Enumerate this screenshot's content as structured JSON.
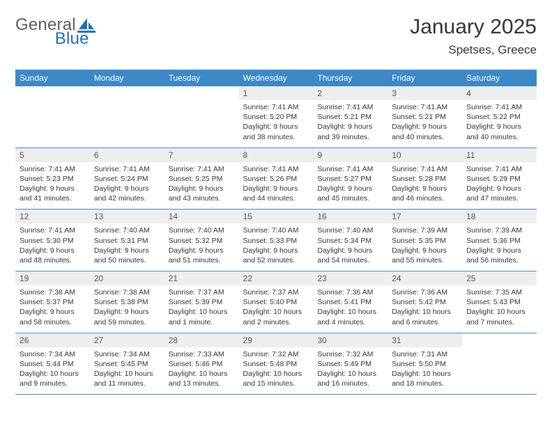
{
  "brand": {
    "name1": "General",
    "name2": "Blue"
  },
  "title": "January 2025",
  "location": "Spetses, Greece",
  "colors": {
    "accent": "#3b89c7",
    "header_text": "#ffffff",
    "daynum_bg": "#eeeeee",
    "text": "#333333",
    "logo_gray": "#5b5b5b"
  },
  "days_of_week": [
    "Sunday",
    "Monday",
    "Tuesday",
    "Wednesday",
    "Thursday",
    "Friday",
    "Saturday"
  ],
  "weeks": [
    [
      {
        "n": "",
        "sr": "",
        "ss": "",
        "dl": ""
      },
      {
        "n": "",
        "sr": "",
        "ss": "",
        "dl": ""
      },
      {
        "n": "",
        "sr": "",
        "ss": "",
        "dl": ""
      },
      {
        "n": "1",
        "sr": "7:41 AM",
        "ss": "5:20 PM",
        "dl": "9 hours and 38 minutes."
      },
      {
        "n": "2",
        "sr": "7:41 AM",
        "ss": "5:21 PM",
        "dl": "9 hours and 39 minutes."
      },
      {
        "n": "3",
        "sr": "7:41 AM",
        "ss": "5:21 PM",
        "dl": "9 hours and 40 minutes."
      },
      {
        "n": "4",
        "sr": "7:41 AM",
        "ss": "5:22 PM",
        "dl": "9 hours and 40 minutes."
      }
    ],
    [
      {
        "n": "5",
        "sr": "7:41 AM",
        "ss": "5:23 PM",
        "dl": "9 hours and 41 minutes."
      },
      {
        "n": "6",
        "sr": "7:41 AM",
        "ss": "5:24 PM",
        "dl": "9 hours and 42 minutes."
      },
      {
        "n": "7",
        "sr": "7:41 AM",
        "ss": "5:25 PM",
        "dl": "9 hours and 43 minutes."
      },
      {
        "n": "8",
        "sr": "7:41 AM",
        "ss": "5:26 PM",
        "dl": "9 hours and 44 minutes."
      },
      {
        "n": "9",
        "sr": "7:41 AM",
        "ss": "5:27 PM",
        "dl": "9 hours and 45 minutes."
      },
      {
        "n": "10",
        "sr": "7:41 AM",
        "ss": "5:28 PM",
        "dl": "9 hours and 46 minutes."
      },
      {
        "n": "11",
        "sr": "7:41 AM",
        "ss": "5:29 PM",
        "dl": "9 hours and 47 minutes."
      }
    ],
    [
      {
        "n": "12",
        "sr": "7:41 AM",
        "ss": "5:30 PM",
        "dl": "9 hours and 48 minutes."
      },
      {
        "n": "13",
        "sr": "7:40 AM",
        "ss": "5:31 PM",
        "dl": "9 hours and 50 minutes."
      },
      {
        "n": "14",
        "sr": "7:40 AM",
        "ss": "5:32 PM",
        "dl": "9 hours and 51 minutes."
      },
      {
        "n": "15",
        "sr": "7:40 AM",
        "ss": "5:33 PM",
        "dl": "9 hours and 52 minutes."
      },
      {
        "n": "16",
        "sr": "7:40 AM",
        "ss": "5:34 PM",
        "dl": "9 hours and 54 minutes."
      },
      {
        "n": "17",
        "sr": "7:39 AM",
        "ss": "5:35 PM",
        "dl": "9 hours and 55 minutes."
      },
      {
        "n": "18",
        "sr": "7:39 AM",
        "ss": "5:36 PM",
        "dl": "9 hours and 56 minutes."
      }
    ],
    [
      {
        "n": "19",
        "sr": "7:38 AM",
        "ss": "5:37 PM",
        "dl": "9 hours and 58 minutes."
      },
      {
        "n": "20",
        "sr": "7:38 AM",
        "ss": "5:38 PM",
        "dl": "9 hours and 59 minutes."
      },
      {
        "n": "21",
        "sr": "7:37 AM",
        "ss": "5:39 PM",
        "dl": "10 hours and 1 minute."
      },
      {
        "n": "22",
        "sr": "7:37 AM",
        "ss": "5:40 PM",
        "dl": "10 hours and 2 minutes."
      },
      {
        "n": "23",
        "sr": "7:36 AM",
        "ss": "5:41 PM",
        "dl": "10 hours and 4 minutes."
      },
      {
        "n": "24",
        "sr": "7:36 AM",
        "ss": "5:42 PM",
        "dl": "10 hours and 6 minutes."
      },
      {
        "n": "25",
        "sr": "7:35 AM",
        "ss": "5:43 PM",
        "dl": "10 hours and 7 minutes."
      }
    ],
    [
      {
        "n": "26",
        "sr": "7:34 AM",
        "ss": "5:44 PM",
        "dl": "10 hours and 9 minutes."
      },
      {
        "n": "27",
        "sr": "7:34 AM",
        "ss": "5:45 PM",
        "dl": "10 hours and 11 minutes."
      },
      {
        "n": "28",
        "sr": "7:33 AM",
        "ss": "5:46 PM",
        "dl": "10 hours and 13 minutes."
      },
      {
        "n": "29",
        "sr": "7:32 AM",
        "ss": "5:48 PM",
        "dl": "10 hours and 15 minutes."
      },
      {
        "n": "30",
        "sr": "7:32 AM",
        "ss": "5:49 PM",
        "dl": "10 hours and 16 minutes."
      },
      {
        "n": "31",
        "sr": "7:31 AM",
        "ss": "5:50 PM",
        "dl": "10 hours and 18 minutes."
      },
      {
        "n": "",
        "sr": "",
        "ss": "",
        "dl": ""
      }
    ]
  ],
  "labels": {
    "sunrise": "Sunrise: ",
    "sunset": "Sunset: ",
    "daylight": "Daylight: "
  }
}
